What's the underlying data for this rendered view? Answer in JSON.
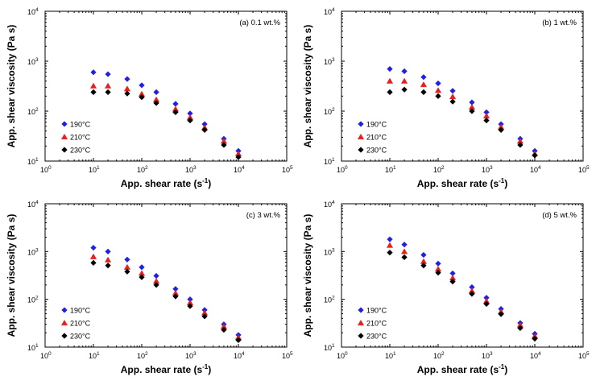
{
  "chart_data": [
    {
      "type": "scatter",
      "label": "(a)  0.1 wt.%",
      "xlabel": "App. shear rate (s",
      "xlabel_exp": "-1",
      "xlabel_end": ")",
      "ylabel": "App. shear viscosity (Pa s)",
      "xscale": "log",
      "yscale": "log",
      "xlim": [
        1,
        100000
      ],
      "ylim": [
        10,
        10000
      ],
      "x_ticks": [
        {
          "base": "10",
          "exp": "0"
        },
        {
          "base": "10",
          "exp": "1"
        },
        {
          "base": "10",
          "exp": "2"
        },
        {
          "base": "10",
          "exp": "3"
        },
        {
          "base": "10",
          "exp": "4"
        },
        {
          "base": "10",
          "exp": "5"
        }
      ],
      "y_ticks": [
        {
          "base": "10",
          "exp": "1"
        },
        {
          "base": "10",
          "exp": "2"
        },
        {
          "base": "10",
          "exp": "3"
        },
        {
          "base": "10",
          "exp": "4"
        }
      ],
      "legend_position": "lower-left",
      "series": [
        {
          "name": "190°C",
          "marker": "diamond",
          "color": "#1f1fe6",
          "x": [
            10,
            20,
            50,
            100,
            200,
            500,
            1000,
            2000,
            5000,
            10000
          ],
          "y": [
            600,
            550,
            440,
            330,
            240,
            140,
            90,
            55,
            28,
            16
          ]
        },
        {
          "name": "210°C",
          "marker": "triangle",
          "color": "#e61f1f",
          "x": [
            10,
            20,
            50,
            100,
            200,
            500,
            1000,
            2000,
            5000,
            10000
          ],
          "y": [
            320,
            320,
            280,
            220,
            170,
            110,
            75,
            47,
            25,
            14
          ]
        },
        {
          "name": "230°C",
          "marker": "diamond",
          "color": "#000000",
          "x": [
            10,
            20,
            50,
            100,
            200,
            500,
            1000,
            2000,
            5000,
            10000
          ],
          "y": [
            240,
            240,
            225,
            190,
            145,
            95,
            65,
            42,
            21,
            12
          ]
        }
      ]
    },
    {
      "type": "scatter",
      "label": "(b)  1 wt.%",
      "xlabel": "App. shear rate (s",
      "xlabel_exp": "-1",
      "xlabel_end": ")",
      "ylabel": "App. shear viscosity (Pa s)",
      "xscale": "log",
      "yscale": "log",
      "xlim": [
        1,
        100000
      ],
      "ylim": [
        10,
        10000
      ],
      "x_ticks": [
        {
          "base": "10",
          "exp": "0"
        },
        {
          "base": "10",
          "exp": "1"
        },
        {
          "base": "10",
          "exp": "2"
        },
        {
          "base": "10",
          "exp": "3"
        },
        {
          "base": "10",
          "exp": "4"
        },
        {
          "base": "10",
          "exp": "5"
        }
      ],
      "y_ticks": [
        {
          "base": "10",
          "exp": "1"
        },
        {
          "base": "10",
          "exp": "2"
        },
        {
          "base": "10",
          "exp": "3"
        },
        {
          "base": "10",
          "exp": "4"
        }
      ],
      "legend_position": "lower-left",
      "series": [
        {
          "name": "190°C",
          "marker": "diamond",
          "color": "#1f1fe6",
          "x": [
            10,
            20,
            50,
            100,
            200,
            500,
            1000,
            2000,
            5000,
            10000
          ],
          "y": [
            700,
            630,
            480,
            360,
            255,
            150,
            95,
            55,
            28,
            16
          ]
        },
        {
          "name": "210°C",
          "marker": "triangle",
          "color": "#e61f1f",
          "x": [
            10,
            20,
            50,
            100,
            200,
            500,
            1000,
            2000,
            5000,
            10000
          ],
          "y": [
            400,
            400,
            340,
            260,
            195,
            120,
            80,
            48,
            25,
            14
          ]
        },
        {
          "name": "230°C",
          "marker": "diamond",
          "color": "#000000",
          "x": [
            10,
            20,
            50,
            100,
            200,
            500,
            1000,
            2000,
            5000,
            10000
          ],
          "y": [
            240,
            270,
            240,
            200,
            155,
            100,
            65,
            42,
            21,
            13
          ]
        }
      ]
    },
    {
      "type": "scatter",
      "label": "(c)  3 wt.%",
      "xlabel": "App. shear rate (s",
      "xlabel_exp": "-1",
      "xlabel_end": ")",
      "ylabel": "App. shear viscosity (Pa s)",
      "xscale": "log",
      "yscale": "log",
      "xlim": [
        1,
        100000
      ],
      "ylim": [
        10,
        10000
      ],
      "x_ticks": [
        {
          "base": "10",
          "exp": "0"
        },
        {
          "base": "10",
          "exp": "1"
        },
        {
          "base": "10",
          "exp": "2"
        },
        {
          "base": "10",
          "exp": "3"
        },
        {
          "base": "10",
          "exp": "4"
        },
        {
          "base": "10",
          "exp": "5"
        }
      ],
      "y_ticks": [
        {
          "base": "10",
          "exp": "1"
        },
        {
          "base": "10",
          "exp": "2"
        },
        {
          "base": "10",
          "exp": "3"
        },
        {
          "base": "10",
          "exp": "4"
        }
      ],
      "legend_position": "lower-left",
      "series": [
        {
          "name": "190°C",
          "marker": "diamond",
          "color": "#1f1fe6",
          "x": [
            10,
            20,
            50,
            100,
            200,
            500,
            1000,
            2000,
            5000,
            10000
          ],
          "y": [
            1200,
            1000,
            680,
            470,
            310,
            165,
            100,
            60,
            30,
            18
          ]
        },
        {
          "name": "210°C",
          "marker": "triangle",
          "color": "#e61f1f",
          "x": [
            10,
            20,
            50,
            100,
            200,
            500,
            1000,
            2000,
            5000,
            10000
          ],
          "y": [
            780,
            670,
            470,
            350,
            240,
            135,
            85,
            52,
            27,
            16
          ]
        },
        {
          "name": "230°C",
          "marker": "diamond",
          "color": "#000000",
          "x": [
            10,
            20,
            50,
            100,
            200,
            500,
            1000,
            2000,
            5000,
            10000
          ],
          "y": [
            580,
            510,
            380,
            290,
            200,
            115,
            72,
            44,
            23,
            14
          ]
        }
      ]
    },
    {
      "type": "scatter",
      "label": "(d)  5 wt.%",
      "xlabel": "App. shear rate (s",
      "xlabel_exp": "-1",
      "xlabel_end": ")",
      "ylabel": "App. shear viscosity (Pa s)",
      "xscale": "log",
      "yscale": "log",
      "xlim": [
        1,
        100000
      ],
      "ylim": [
        10,
        10000
      ],
      "x_ticks": [
        {
          "base": "10",
          "exp": "0"
        },
        {
          "base": "10",
          "exp": "1"
        },
        {
          "base": "10",
          "exp": "2"
        },
        {
          "base": "10",
          "exp": "3"
        },
        {
          "base": "10",
          "exp": "4"
        },
        {
          "base": "10",
          "exp": "5"
        }
      ],
      "y_ticks": [
        {
          "base": "10",
          "exp": "1"
        },
        {
          "base": "10",
          "exp": "2"
        },
        {
          "base": "10",
          "exp": "3"
        },
        {
          "base": "10",
          "exp": "4"
        }
      ],
      "legend_position": "lower-left",
      "series": [
        {
          "name": "190°C",
          "marker": "diamond",
          "color": "#1f1fe6",
          "x": [
            10,
            20,
            50,
            100,
            200,
            500,
            1000,
            2000,
            5000,
            10000
          ],
          "y": [
            1800,
            1400,
            850,
            560,
            350,
            180,
            108,
            63,
            32,
            19
          ]
        },
        {
          "name": "210°C",
          "marker": "triangle",
          "color": "#e61f1f",
          "x": [
            10,
            20,
            50,
            100,
            200,
            500,
            1000,
            2000,
            5000,
            10000
          ],
          "y": [
            1350,
            1000,
            620,
            430,
            280,
            150,
            92,
            55,
            29,
            17
          ]
        },
        {
          "name": "230°C",
          "marker": "diamond",
          "color": "#000000",
          "x": [
            10,
            20,
            50,
            100,
            200,
            500,
            1000,
            2000,
            5000,
            10000
          ],
          "y": [
            950,
            760,
            510,
            360,
            235,
            130,
            80,
            49,
            25,
            15
          ]
        }
      ]
    }
  ]
}
